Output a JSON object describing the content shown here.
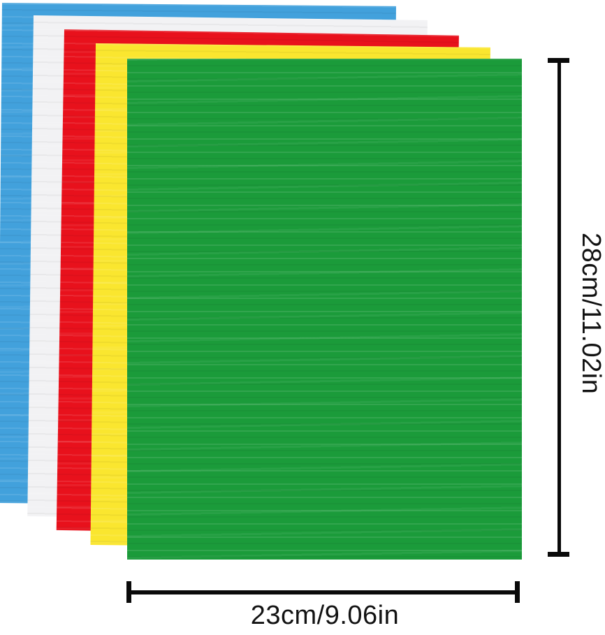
{
  "product_diagram": {
    "description_labels": {
      "height_label": "28cm/11.02in",
      "width_label": "23cm/9.06in"
    },
    "sheets": [
      {
        "name": "blue-sheet",
        "color": "#42A1DC"
      },
      {
        "name": "white-sheet",
        "color": "#F2F2F4"
      },
      {
        "name": "red-sheet",
        "color": "#E8111C"
      },
      {
        "name": "yellow-sheet",
        "color": "#FAE62F"
      },
      {
        "name": "green-sheet",
        "color": "#1B9B3A"
      }
    ],
    "dimension_line_color": "#0A0A0A",
    "background_color": "#FFFFFF"
  }
}
